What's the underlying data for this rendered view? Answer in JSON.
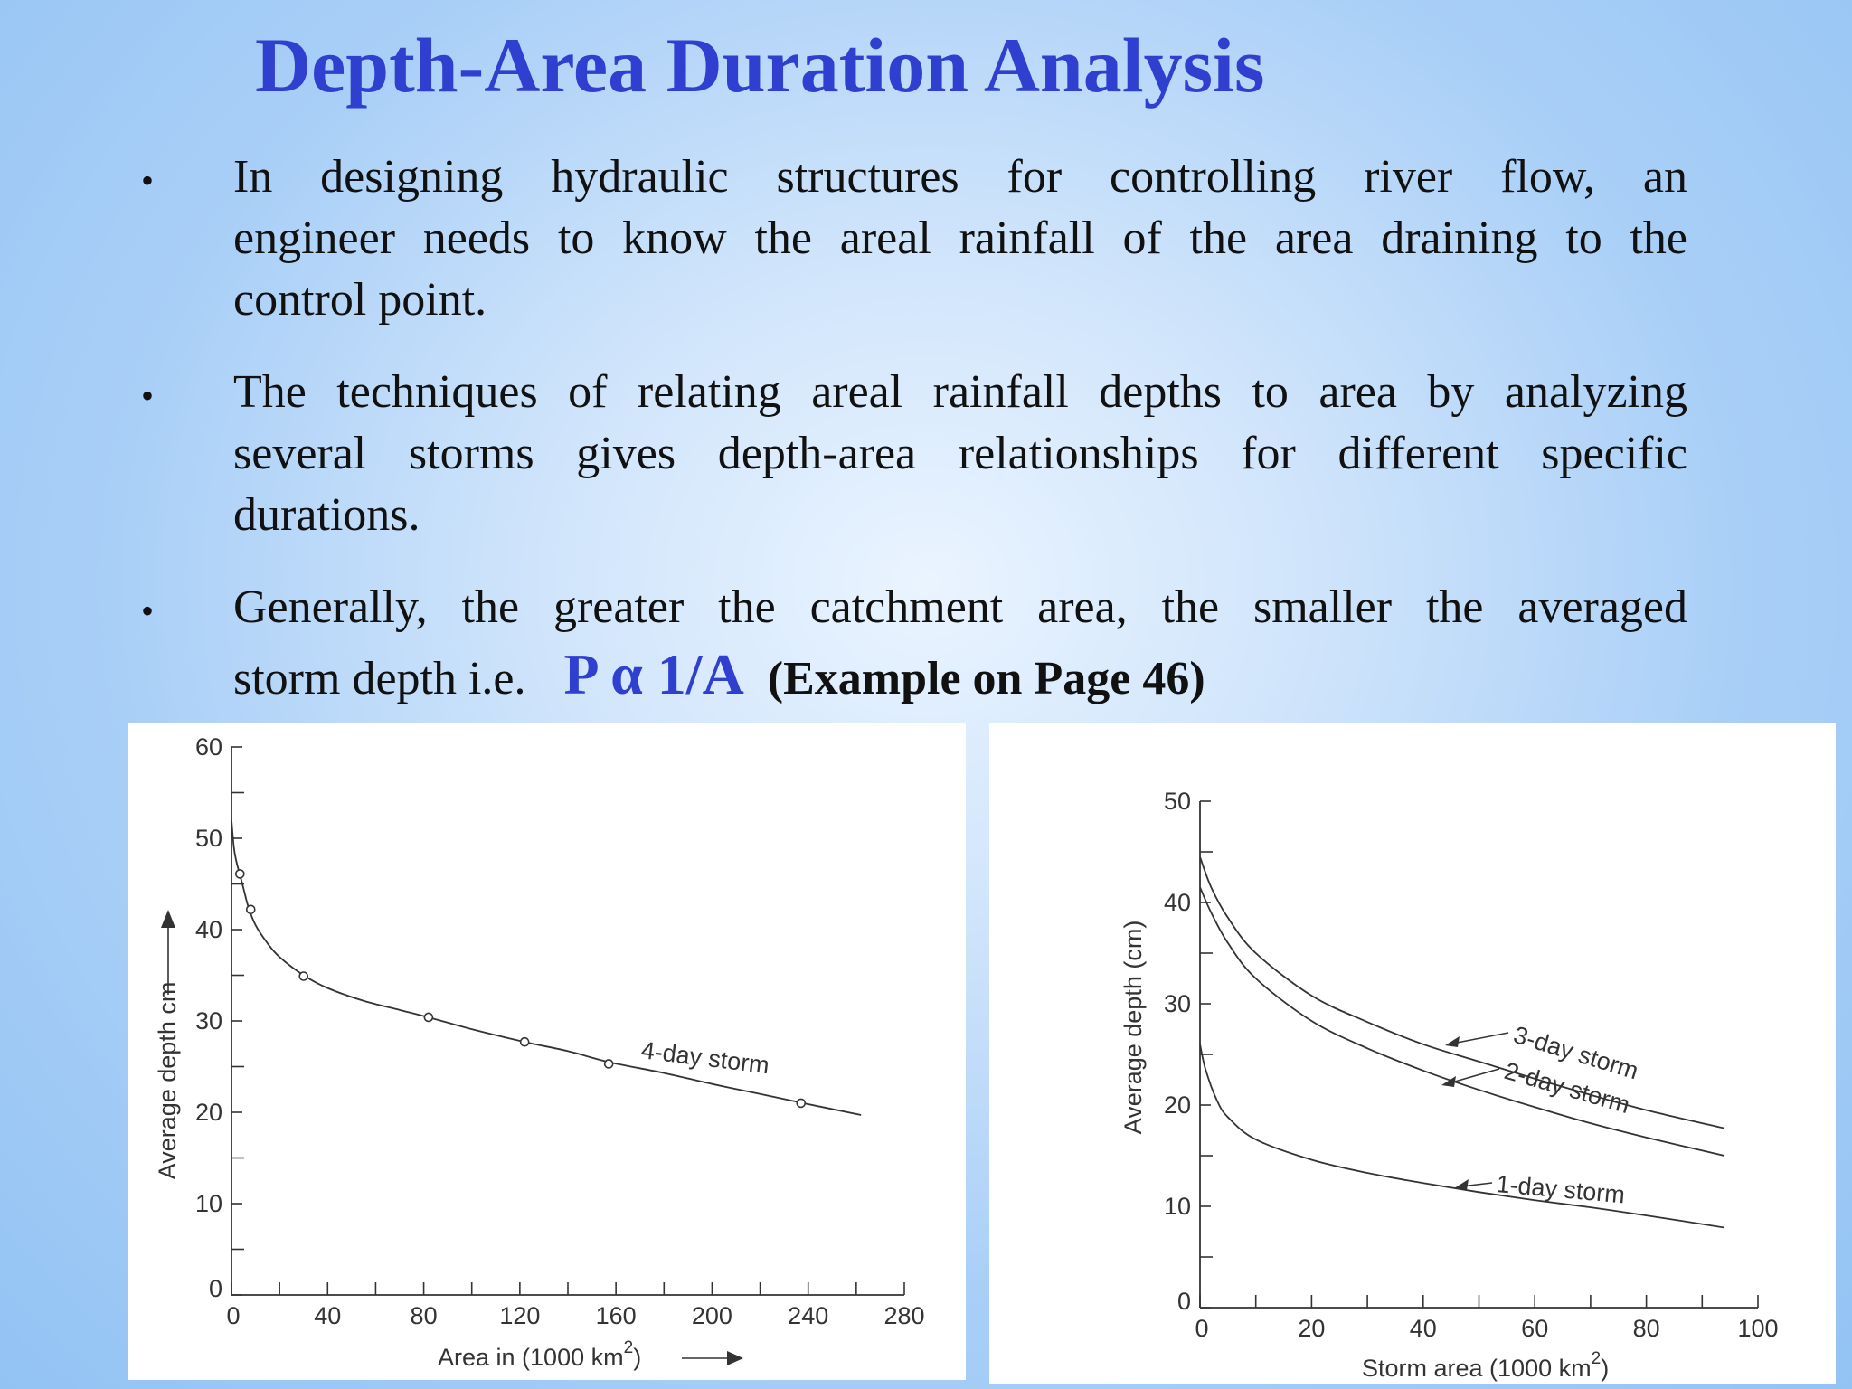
{
  "slide": {
    "title": "Depth-Area Duration Analysis",
    "bullet_glyph": "•",
    "bullets": [
      {
        "lines": [
          "In designing hydraulic structures for controlling river flow, an",
          "engineer needs to know the areal rainfall of the area draining to the",
          "control point."
        ]
      },
      {
        "lines": [
          "The techniques of relating areal rainfall depths to area by analyzing",
          "several storms gives depth-area relationships for different specific",
          "durations."
        ]
      },
      {
        "lines": [
          "Generally, the greater the catchment area, the smaller the averaged"
        ],
        "last_line_prefix": "storm depth i.e.",
        "formula": "P α 1/A",
        "example_note": "(Example on Page 46)"
      }
    ],
    "colors": {
      "title": "#2f3fcf",
      "text": "#111111",
      "background": "#a9cff7"
    }
  },
  "chart_data": [
    {
      "type": "line",
      "xlabel": "Area in (1000 km",
      "xlabel_sup": "2",
      "xlabel_tail": ")",
      "ylabel": "Average depth cm",
      "xlim": [
        0,
        280
      ],
      "ylim": [
        0,
        60
      ],
      "xticks": [
        0,
        40,
        80,
        120,
        160,
        200,
        240,
        280
      ],
      "yticks": [
        0,
        10,
        20,
        30,
        40,
        50,
        60
      ],
      "x_minor_step": 20,
      "y_minor_step": 5,
      "series": [
        {
          "name": "4-day storm",
          "curve": [
            [
              0,
              52
            ],
            [
              1,
              49
            ],
            [
              2,
              47.5
            ],
            [
              3.5,
              46
            ],
            [
              5,
              44.5
            ],
            [
              7,
              42.5
            ],
            [
              10,
              40.5
            ],
            [
              15,
              38.5
            ],
            [
              20,
              37
            ],
            [
              30,
              35
            ],
            [
              40,
              33.6
            ],
            [
              55,
              32.2
            ],
            [
              70,
              31.2
            ],
            [
              82,
              30.4
            ],
            [
              100,
              29.1
            ],
            [
              122,
              27.7
            ],
            [
              140,
              26.7
            ],
            [
              157,
              25.5
            ],
            [
              180,
              24.3
            ],
            [
              200,
              23.1
            ],
            [
              220,
              22
            ],
            [
              238,
              21
            ],
            [
              262,
              19.7
            ]
          ],
          "points": [
            [
              3.5,
              46.1
            ],
            [
              8,
              42.2
            ],
            [
              30,
              34.9
            ],
            [
              82,
              30.4
            ],
            [
              122,
              27.7
            ],
            [
              157,
              25.3
            ],
            [
              237,
              21.0
            ]
          ]
        }
      ]
    },
    {
      "type": "line",
      "xlabel": "Storm area (1000 km",
      "xlabel_sup": "2",
      "xlabel_tail": ")",
      "ylabel": "Average depth (cm)",
      "xlim": [
        0,
        100
      ],
      "ylim": [
        0,
        50
      ],
      "xticks": [
        0,
        20,
        40,
        60,
        80,
        100
      ],
      "yticks": [
        0,
        10,
        20,
        30,
        40,
        50
      ],
      "x_minor_step": 10,
      "y_minor_step": 5,
      "series": [
        {
          "name": "3-day storm",
          "curve": [
            [
              0,
              44.5
            ],
            [
              2,
              41.5
            ],
            [
              5,
              38.5
            ],
            [
              10,
              35
            ],
            [
              20,
              30.8
            ],
            [
              30,
              28.2
            ],
            [
              40,
              26
            ],
            [
              50,
              24.3
            ],
            [
              60,
              22.6
            ],
            [
              70,
              21
            ],
            [
              80,
              19.5
            ],
            [
              94,
              17.7
            ]
          ]
        },
        {
          "name": "2-day storm",
          "curve": [
            [
              0,
              41.5
            ],
            [
              2,
              39
            ],
            [
              5,
              36
            ],
            [
              10,
              32.5
            ],
            [
              20,
              28.3
            ],
            [
              30,
              25.6
            ],
            [
              40,
              23.4
            ],
            [
              50,
              21.5
            ],
            [
              60,
              19.8
            ],
            [
              70,
              18.2
            ],
            [
              80,
              16.8
            ],
            [
              94,
              15
            ]
          ]
        },
        {
          "name": "1-day storm",
          "curve": [
            [
              0,
              26
            ],
            [
              1,
              23.5
            ],
            [
              3,
              20.5
            ],
            [
              5,
              18.8
            ],
            [
              10,
              16.6
            ],
            [
              20,
              14.6
            ],
            [
              30,
              13.3
            ],
            [
              40,
              12.3
            ],
            [
              50,
              11.4
            ],
            [
              60,
              10.6
            ],
            [
              70,
              9.9
            ],
            [
              80,
              9.1
            ],
            [
              94,
              7.9
            ]
          ]
        }
      ]
    }
  ]
}
